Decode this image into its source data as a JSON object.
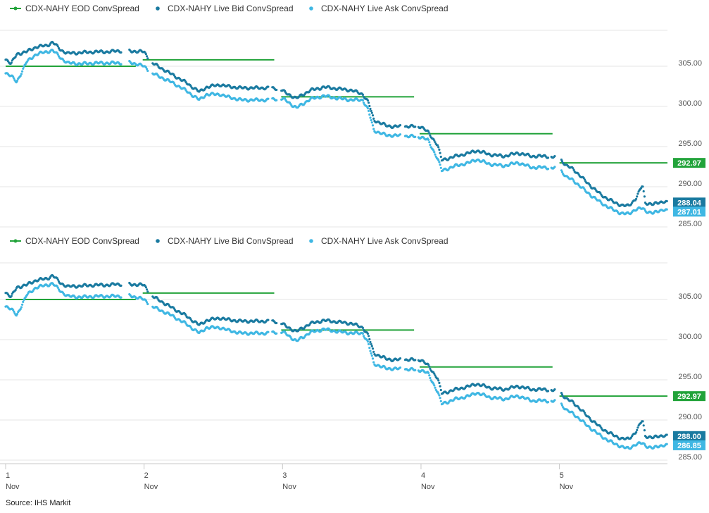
{
  "source": "Source: IHS Markit",
  "colors": {
    "eod": "#22a33a",
    "bid": "#1a7aa0",
    "ask": "#3fb7e3",
    "grid": "#e6e6e6",
    "axis": "#c8c8c8"
  },
  "x_axis": {
    "labels": [
      {
        "day": "1",
        "month": "Nov"
      },
      {
        "day": "2",
        "month": "Nov"
      },
      {
        "day": "3",
        "month": "Nov"
      },
      {
        "day": "4",
        "month": "Nov"
      },
      {
        "day": "5",
        "month": "Nov"
      }
    ]
  },
  "chart_data": [
    {
      "type": "line",
      "legend": [
        {
          "name": "CDX-NAHY EOD ConvSpread",
          "color": "#22a33a",
          "marker": "line"
        },
        {
          "name": "CDX-NAHY Live Bid ConvSpread",
          "color": "#1a7aa0",
          "marker": "dot"
        },
        {
          "name": "CDX-NAHY Live Ask ConvSpread",
          "color": "#3fb7e3",
          "marker": "dot"
        }
      ],
      "legend_position": "top-left",
      "grid": true,
      "x_range": [
        1,
        5.78
      ],
      "ylim": [
        285,
        310
      ],
      "yticks": [
        "285.00",
        "290.00",
        "295.00",
        "300.00",
        "305.00"
      ],
      "eod_segments": [
        {
          "x0": 1.0,
          "x1": 1.94,
          "y": 305.0
        },
        {
          "x0": 1.99,
          "x1": 2.94,
          "y": 305.8
        },
        {
          "x0": 2.99,
          "x1": 3.95,
          "y": 301.2
        },
        {
          "x0": 3.99,
          "x1": 4.95,
          "y": 296.6
        },
        {
          "x0": 5.0,
          "x1": 5.78,
          "y": 292.97
        }
      ],
      "bid_anchors": [
        [
          1.0,
          305.9
        ],
        [
          1.04,
          305.3
        ],
        [
          1.08,
          306.5
        ],
        [
          1.15,
          306.8
        ],
        [
          1.22,
          307.4
        ],
        [
          1.3,
          307.6
        ],
        [
          1.34,
          308.0
        ],
        [
          1.4,
          307.0
        ],
        [
          1.45,
          306.6
        ],
        [
          1.55,
          306.7
        ],
        [
          1.65,
          306.8
        ],
        [
          1.75,
          306.8
        ],
        [
          1.8,
          306.9
        ],
        [
          1.9,
          306.9
        ],
        [
          2.0,
          306.8
        ],
        [
          2.05,
          305.5
        ],
        [
          2.1,
          305.0
        ],
        [
          2.2,
          304.0
        ],
        [
          2.3,
          303.0
        ],
        [
          2.4,
          301.8
        ],
        [
          2.45,
          302.4
        ],
        [
          2.55,
          302.7
        ],
        [
          2.6,
          302.5
        ],
        [
          2.7,
          302.3
        ],
        [
          2.8,
          302.3
        ],
        [
          2.9,
          302.3
        ],
        [
          2.98,
          302.2
        ],
        [
          3.02,
          301.7
        ],
        [
          3.1,
          301.0
        ],
        [
          3.2,
          302.0
        ],
        [
          3.3,
          302.4
        ],
        [
          3.4,
          302.2
        ],
        [
          3.5,
          302.0
        ],
        [
          3.58,
          301.5
        ],
        [
          3.62,
          300.5
        ],
        [
          3.66,
          298.3
        ],
        [
          3.75,
          297.6
        ],
        [
          3.8,
          297.5
        ],
        [
          3.9,
          297.5
        ],
        [
          4.0,
          297.5
        ],
        [
          4.05,
          296.8
        ],
        [
          4.12,
          295.2
        ],
        [
          4.15,
          293.3
        ],
        [
          4.25,
          293.8
        ],
        [
          4.35,
          294.2
        ],
        [
          4.4,
          294.5
        ],
        [
          4.5,
          294.0
        ],
        [
          4.6,
          293.8
        ],
        [
          4.7,
          294.2
        ],
        [
          4.8,
          293.8
        ],
        [
          4.9,
          293.8
        ],
        [
          5.0,
          293.6
        ],
        [
          5.05,
          292.6
        ],
        [
          5.1,
          292.2
        ],
        [
          5.2,
          290.5
        ],
        [
          5.3,
          289.0
        ],
        [
          5.4,
          288.0
        ],
        [
          5.45,
          287.7
        ],
        [
          5.5,
          287.6
        ],
        [
          5.55,
          288.5
        ],
        [
          5.6,
          290.2
        ],
        [
          5.62,
          288.0
        ],
        [
          5.68,
          287.8
        ],
        [
          5.75,
          288.2
        ],
        [
          5.78,
          288.04
        ]
      ],
      "ask_anchors": [
        [
          1.0,
          304.2
        ],
        [
          1.04,
          303.8
        ],
        [
          1.08,
          303.0
        ],
        [
          1.15,
          305.5
        ],
        [
          1.22,
          306.5
        ],
        [
          1.3,
          306.8
        ],
        [
          1.34,
          307.0
        ],
        [
          1.4,
          306.0
        ],
        [
          1.45,
          305.4
        ],
        [
          1.55,
          305.3
        ],
        [
          1.65,
          305.4
        ],
        [
          1.75,
          305.4
        ],
        [
          1.8,
          305.4
        ],
        [
          1.9,
          305.5
        ],
        [
          2.0,
          305.0
        ],
        [
          2.05,
          304.2
        ],
        [
          2.1,
          303.8
        ],
        [
          2.2,
          303.0
        ],
        [
          2.3,
          302.0
        ],
        [
          2.4,
          300.8
        ],
        [
          2.45,
          301.5
        ],
        [
          2.55,
          301.5
        ],
        [
          2.6,
          301.2
        ],
        [
          2.7,
          300.8
        ],
        [
          2.8,
          300.8
        ],
        [
          2.9,
          300.8
        ],
        [
          2.98,
          301.0
        ],
        [
          3.02,
          300.8
        ],
        [
          3.1,
          299.8
        ],
        [
          3.2,
          300.9
        ],
        [
          3.3,
          301.3
        ],
        [
          3.4,
          301.0
        ],
        [
          3.5,
          300.8
        ],
        [
          3.58,
          300.8
        ],
        [
          3.62,
          299.5
        ],
        [
          3.66,
          297.0
        ],
        [
          3.75,
          296.4
        ],
        [
          3.8,
          296.4
        ],
        [
          3.9,
          296.3
        ],
        [
          4.0,
          296.2
        ],
        [
          4.05,
          295.8
        ],
        [
          4.12,
          293.5
        ],
        [
          4.15,
          292.0
        ],
        [
          4.25,
          292.6
        ],
        [
          4.35,
          293.0
        ],
        [
          4.4,
          293.4
        ],
        [
          4.5,
          292.8
        ],
        [
          4.6,
          292.6
        ],
        [
          4.7,
          293.0
        ],
        [
          4.8,
          292.4
        ],
        [
          4.9,
          292.4
        ],
        [
          5.0,
          292.3
        ],
        [
          5.05,
          291.2
        ],
        [
          5.1,
          290.8
        ],
        [
          5.2,
          289.3
        ],
        [
          5.3,
          288.0
        ],
        [
          5.4,
          287.0
        ],
        [
          5.45,
          286.7
        ],
        [
          5.5,
          286.6
        ],
        [
          5.55,
          287.2
        ],
        [
          5.6,
          287.3
        ],
        [
          5.62,
          287.0
        ],
        [
          5.68,
          286.7
        ],
        [
          5.75,
          287.2
        ],
        [
          5.78,
          287.01
        ]
      ],
      "gaps": [
        [
          1.84,
          1.89
        ],
        [
          2.03,
          2.06
        ],
        [
          2.9,
          2.92
        ],
        [
          2.96,
          2.99
        ],
        [
          3.85,
          3.88
        ],
        [
          3.96,
          3.98
        ],
        [
          4.92,
          4.94
        ],
        [
          4.97,
          5.01
        ]
      ],
      "end_labels": [
        {
          "series": "eod",
          "value": "292.97",
          "color": "#22a33a"
        },
        {
          "series": "bid",
          "value": "288.04",
          "color": "#1a7aa0"
        },
        {
          "series": "ask",
          "value": "287.01",
          "color": "#3fb7e3"
        }
      ]
    },
    {
      "type": "line",
      "legend": [
        {
          "name": "CDX-NAHY EOD ConvSpread",
          "color": "#22a33a",
          "marker": "line"
        },
        {
          "name": "CDX-NAHY Live Bid ConvSpread",
          "color": "#1a7aa0",
          "marker": "dot"
        },
        {
          "name": "CDX-NAHY Live Ask ConvSpread",
          "color": "#3fb7e3",
          "marker": "dot"
        }
      ],
      "legend_position": "top-left",
      "grid": true,
      "x_range": [
        1,
        5.78
      ],
      "ylim": [
        285,
        310
      ],
      "yticks": [
        "285.00",
        "290.00",
        "295.00",
        "300.00",
        "305.00"
      ],
      "eod_segments": [
        {
          "x0": 1.0,
          "x1": 1.94,
          "y": 305.0
        },
        {
          "x0": 1.99,
          "x1": 2.94,
          "y": 305.8
        },
        {
          "x0": 2.99,
          "x1": 3.95,
          "y": 301.2
        },
        {
          "x0": 3.99,
          "x1": 4.95,
          "y": 296.6
        },
        {
          "x0": 5.0,
          "x1": 5.78,
          "y": 292.97
        }
      ],
      "bid_anchors": [
        [
          1.0,
          305.9
        ],
        [
          1.04,
          305.3
        ],
        [
          1.08,
          306.5
        ],
        [
          1.15,
          306.8
        ],
        [
          1.22,
          307.4
        ],
        [
          1.3,
          307.6
        ],
        [
          1.34,
          308.0
        ],
        [
          1.4,
          307.0
        ],
        [
          1.45,
          306.6
        ],
        [
          1.55,
          306.7
        ],
        [
          1.65,
          306.8
        ],
        [
          1.75,
          306.8
        ],
        [
          1.8,
          306.9
        ],
        [
          1.9,
          306.9
        ],
        [
          2.0,
          306.8
        ],
        [
          2.05,
          305.5
        ],
        [
          2.1,
          305.0
        ],
        [
          2.2,
          304.0
        ],
        [
          2.3,
          303.0
        ],
        [
          2.4,
          301.8
        ],
        [
          2.45,
          302.4
        ],
        [
          2.55,
          302.7
        ],
        [
          2.6,
          302.5
        ],
        [
          2.7,
          302.3
        ],
        [
          2.8,
          302.3
        ],
        [
          2.9,
          302.3
        ],
        [
          2.98,
          302.2
        ],
        [
          3.02,
          301.7
        ],
        [
          3.1,
          301.0
        ],
        [
          3.2,
          302.0
        ],
        [
          3.3,
          302.4
        ],
        [
          3.4,
          302.2
        ],
        [
          3.5,
          302.0
        ],
        [
          3.58,
          301.5
        ],
        [
          3.62,
          300.5
        ],
        [
          3.66,
          298.3
        ],
        [
          3.75,
          297.6
        ],
        [
          3.8,
          297.5
        ],
        [
          3.9,
          297.5
        ],
        [
          4.0,
          297.5
        ],
        [
          4.05,
          296.8
        ],
        [
          4.12,
          295.2
        ],
        [
          4.15,
          293.3
        ],
        [
          4.25,
          293.8
        ],
        [
          4.35,
          294.2
        ],
        [
          4.4,
          294.5
        ],
        [
          4.5,
          294.0
        ],
        [
          4.6,
          293.8
        ],
        [
          4.7,
          294.2
        ],
        [
          4.8,
          293.8
        ],
        [
          4.9,
          293.8
        ],
        [
          5.0,
          293.6
        ],
        [
          5.05,
          292.6
        ],
        [
          5.1,
          292.2
        ],
        [
          5.2,
          290.5
        ],
        [
          5.3,
          289.0
        ],
        [
          5.4,
          288.0
        ],
        [
          5.45,
          287.7
        ],
        [
          5.5,
          287.6
        ],
        [
          5.55,
          288.5
        ],
        [
          5.6,
          290.0
        ],
        [
          5.62,
          288.0
        ],
        [
          5.68,
          287.8
        ],
        [
          5.75,
          288.1
        ],
        [
          5.78,
          288.0
        ]
      ],
      "ask_anchors": [
        [
          1.0,
          304.2
        ],
        [
          1.04,
          303.8
        ],
        [
          1.08,
          303.0
        ],
        [
          1.15,
          305.5
        ],
        [
          1.22,
          306.5
        ],
        [
          1.3,
          306.8
        ],
        [
          1.34,
          307.0
        ],
        [
          1.4,
          306.0
        ],
        [
          1.45,
          305.4
        ],
        [
          1.55,
          305.3
        ],
        [
          1.65,
          305.4
        ],
        [
          1.75,
          305.4
        ],
        [
          1.8,
          305.4
        ],
        [
          1.9,
          305.5
        ],
        [
          2.0,
          305.0
        ],
        [
          2.05,
          304.2
        ],
        [
          2.1,
          303.8
        ],
        [
          2.2,
          303.0
        ],
        [
          2.3,
          302.0
        ],
        [
          2.4,
          300.8
        ],
        [
          2.45,
          301.5
        ],
        [
          2.55,
          301.5
        ],
        [
          2.6,
          301.2
        ],
        [
          2.7,
          300.8
        ],
        [
          2.8,
          300.8
        ],
        [
          2.9,
          300.8
        ],
        [
          2.98,
          301.0
        ],
        [
          3.02,
          300.8
        ],
        [
          3.1,
          299.8
        ],
        [
          3.2,
          300.9
        ],
        [
          3.3,
          301.3
        ],
        [
          3.4,
          301.0
        ],
        [
          3.5,
          300.8
        ],
        [
          3.58,
          300.8
        ],
        [
          3.62,
          299.5
        ],
        [
          3.66,
          297.0
        ],
        [
          3.75,
          296.4
        ],
        [
          3.8,
          296.4
        ],
        [
          3.9,
          296.3
        ],
        [
          4.0,
          296.2
        ],
        [
          4.05,
          295.8
        ],
        [
          4.12,
          293.5
        ],
        [
          4.15,
          292.0
        ],
        [
          4.25,
          292.6
        ],
        [
          4.35,
          293.0
        ],
        [
          4.4,
          293.4
        ],
        [
          4.5,
          292.8
        ],
        [
          4.6,
          292.6
        ],
        [
          4.7,
          293.0
        ],
        [
          4.8,
          292.4
        ],
        [
          4.9,
          292.4
        ],
        [
          5.0,
          292.3
        ],
        [
          5.05,
          291.2
        ],
        [
          5.1,
          290.8
        ],
        [
          5.2,
          289.3
        ],
        [
          5.3,
          288.0
        ],
        [
          5.4,
          287.0
        ],
        [
          5.45,
          286.7
        ],
        [
          5.5,
          286.4
        ],
        [
          5.55,
          287.0
        ],
        [
          5.6,
          287.1
        ],
        [
          5.62,
          286.8
        ],
        [
          5.68,
          286.5
        ],
        [
          5.75,
          286.9
        ],
        [
          5.78,
          286.85
        ]
      ],
      "gaps": [
        [
          1.84,
          1.89
        ],
        [
          2.03,
          2.06
        ],
        [
          2.9,
          2.92
        ],
        [
          2.96,
          2.99
        ],
        [
          3.85,
          3.88
        ],
        [
          3.96,
          3.98
        ],
        [
          4.92,
          4.94
        ],
        [
          4.97,
          5.01
        ]
      ],
      "end_labels": [
        {
          "series": "eod",
          "value": "292.97",
          "color": "#22a33a"
        },
        {
          "series": "bid",
          "value": "288.00",
          "color": "#1a7aa0"
        },
        {
          "series": "ask",
          "value": "286.85",
          "color": "#3fb7e3"
        }
      ]
    }
  ]
}
